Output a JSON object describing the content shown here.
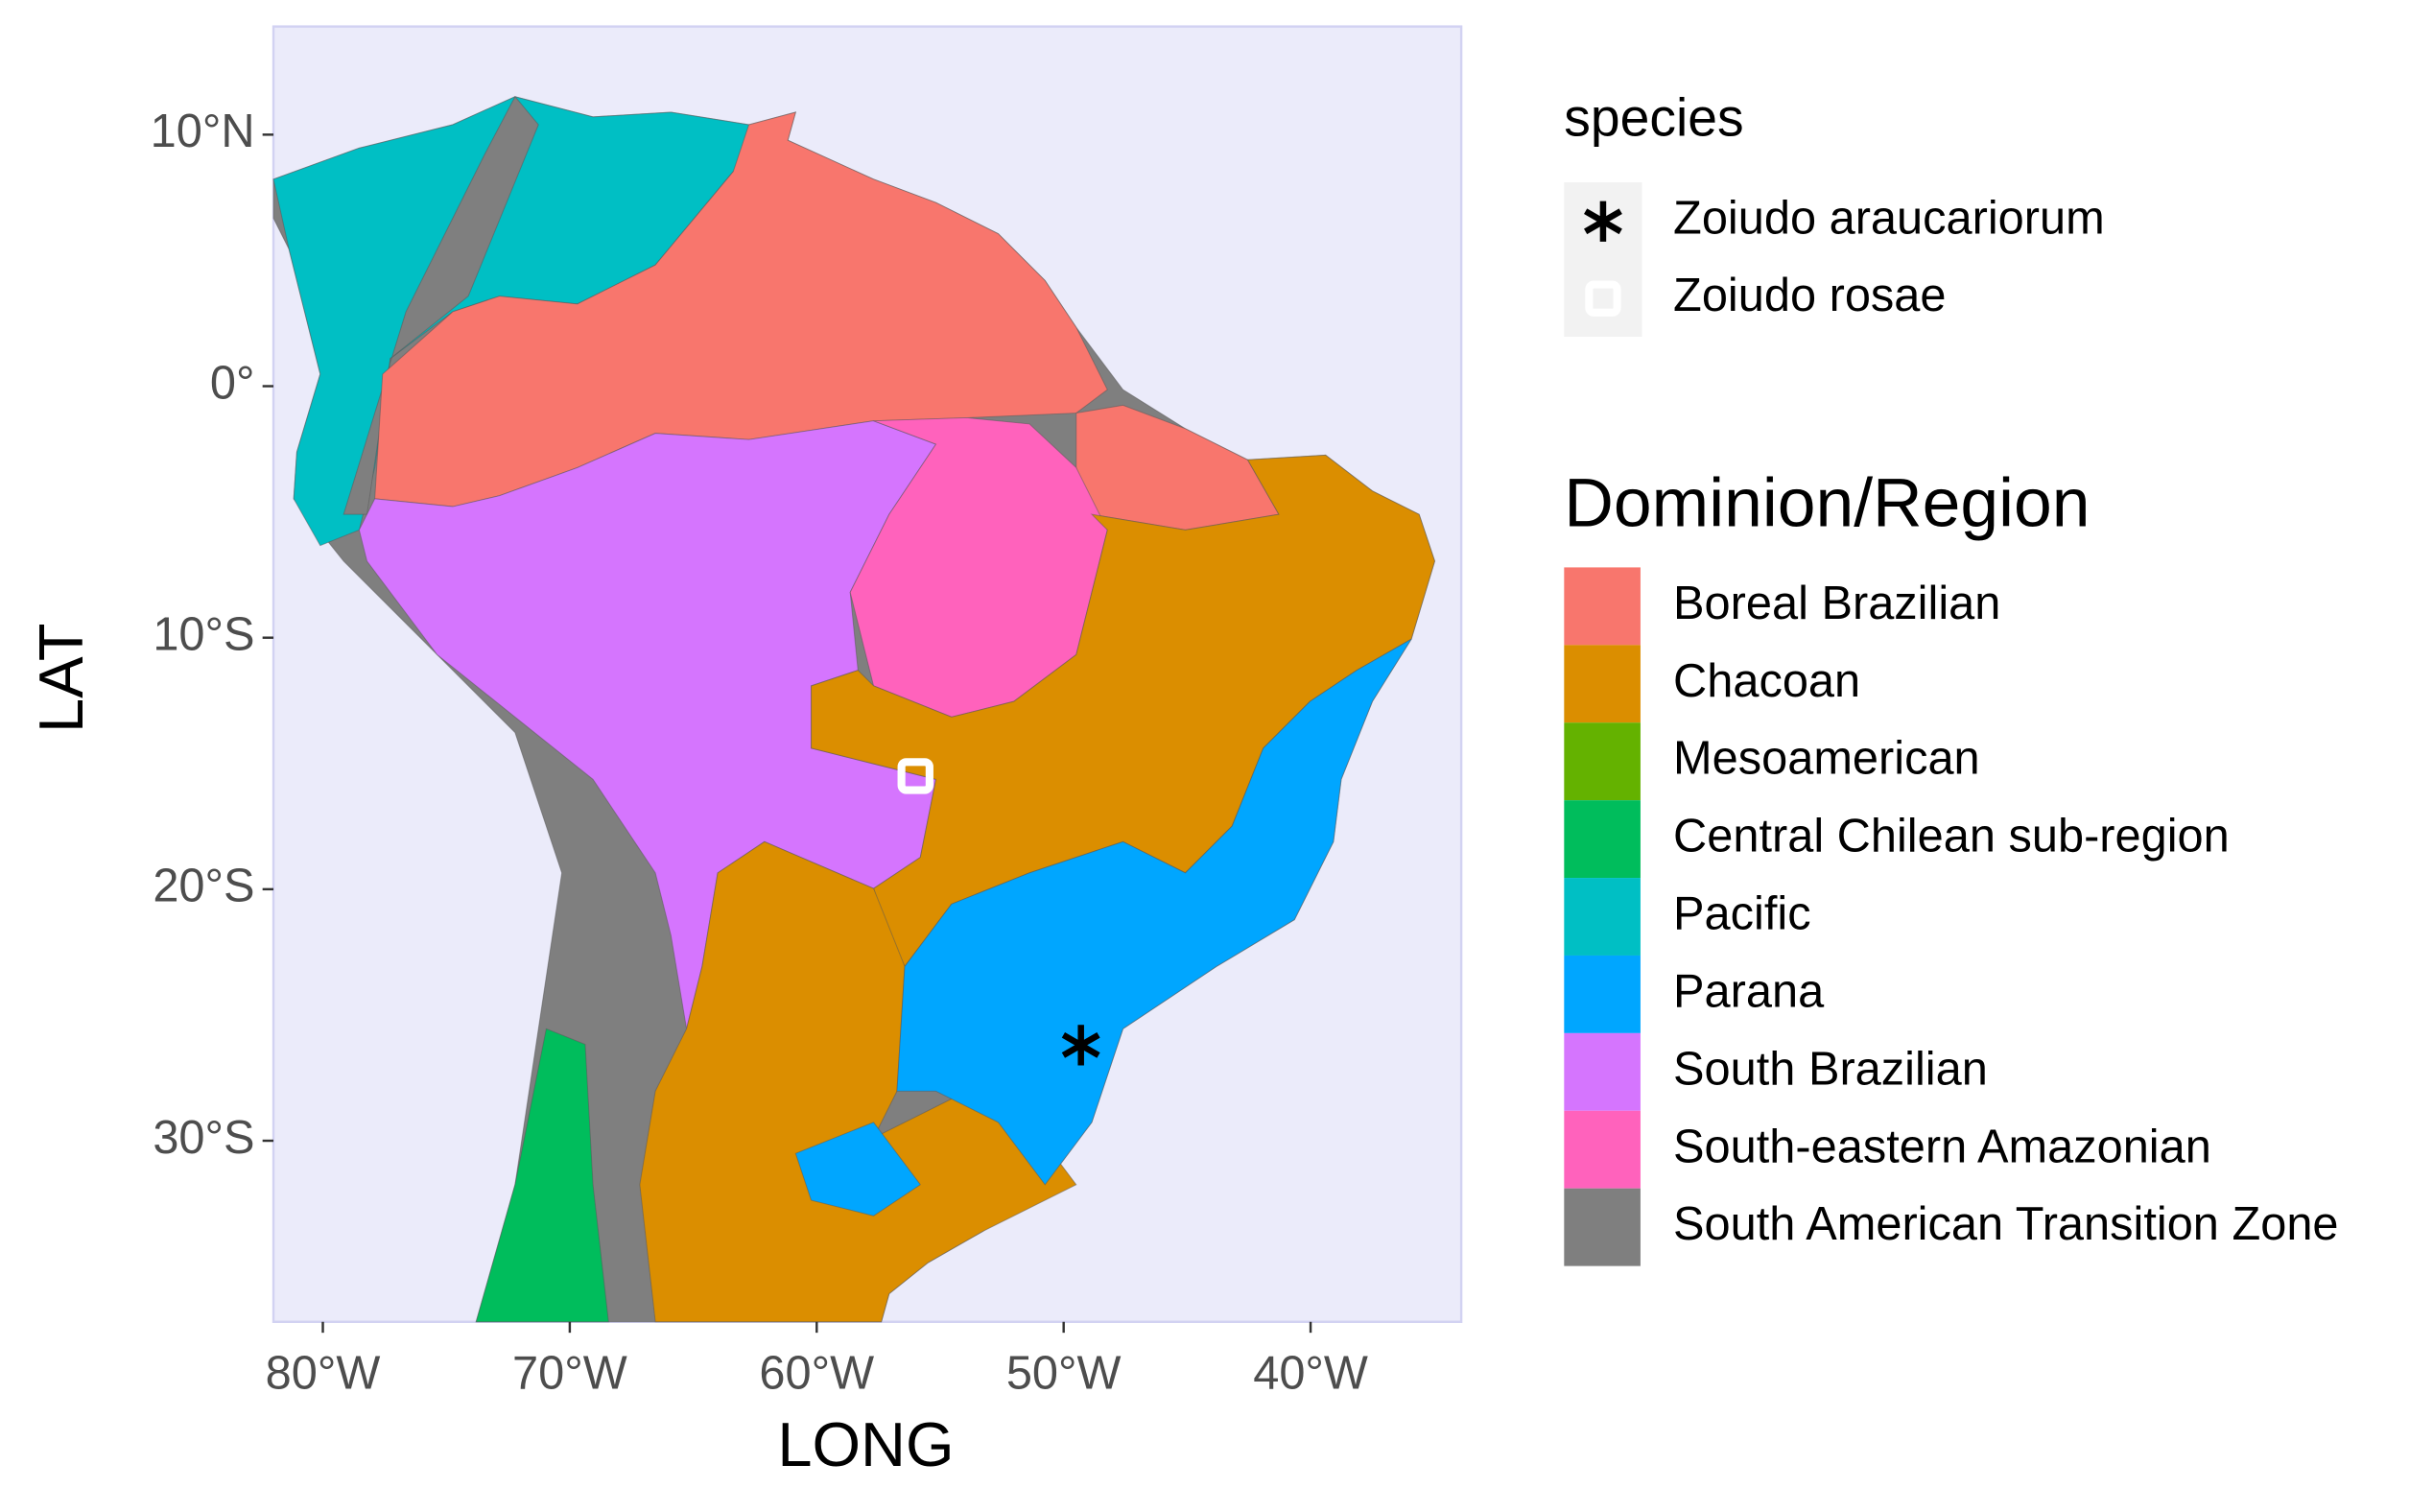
{
  "chart_data": {
    "type": "map",
    "x_label": "LONG",
    "y_label": "LAT",
    "xlim": [
      -82.0,
      -33.9
    ],
    "ylim": [
      -37.2,
      14.3
    ],
    "xticks": [
      {
        "value": -80,
        "label": "80°W"
      },
      {
        "value": -70,
        "label": "70°W"
      },
      {
        "value": -60,
        "label": "60°W"
      },
      {
        "value": -50,
        "label": "50°W"
      },
      {
        "value": -40,
        "label": "40°W"
      }
    ],
    "yticks": [
      {
        "value": 10,
        "label": "10°N"
      },
      {
        "value": 0,
        "label": "0°"
      },
      {
        "value": -10,
        "label": "10°S"
      },
      {
        "value": -20,
        "label": "20°S"
      },
      {
        "value": -30,
        "label": "30°S"
      }
    ],
    "species": {
      "title": "species",
      "series": [
        {
          "name": "Zoiudo araucariorum",
          "marker": "asterisk",
          "color": "#000000",
          "x": [
            -49.3
          ],
          "y": [
            -26.2
          ]
        },
        {
          "name": "Zoiudo rosae",
          "marker": "open-square",
          "color": "#ffffff",
          "x": [
            -56.0
          ],
          "y": [
            -15.5
          ]
        }
      ]
    },
    "regions": {
      "title": "Dominion/Region",
      "categories": [
        "Boreal Brazilian",
        "Chacoan",
        "Mesoamerican",
        "Central Chilean sub-region",
        "Pacific",
        "Parana",
        "South Brazilian",
        "South-eastern Amazonian",
        "South American Transition Zone"
      ],
      "colors": [
        "#F8766D",
        "#DB8E00",
        "#64B200",
        "#00BD5C",
        "#00BFC4",
        "#00A6FF",
        "#D575FE",
        "#FF62BC",
        "#7F7F7F"
      ]
    }
  }
}
